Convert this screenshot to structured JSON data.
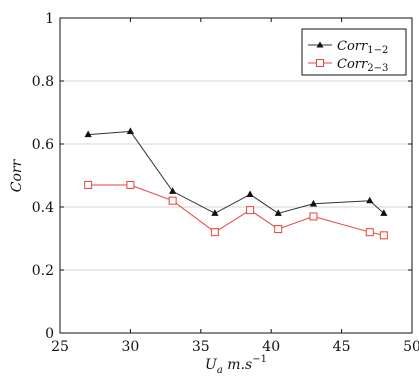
{
  "chart_data": {
    "type": "line",
    "title": "",
    "xlabel": {
      "base": "U",
      "sub": "a",
      "unit": " m.s",
      "sup": "−1"
    },
    "ylabel": "Corr",
    "xlim": [
      25,
      50
    ],
    "ylim": [
      0,
      1
    ],
    "xticks": [
      25,
      30,
      35,
      40,
      45,
      50
    ],
    "xtick_labels": [
      "25",
      "30",
      "35",
      "40",
      "45",
      "50"
    ],
    "yticks": [
      0,
      0.2,
      0.4,
      0.6,
      0.8,
      1
    ],
    "ytick_labels": [
      "0",
      "0.2",
      "0.4",
      "0.6",
      "0.8",
      "1"
    ],
    "grid": {
      "horizontal": true,
      "vertical": false
    },
    "legend_position": "top-right",
    "series": [
      {
        "name": "Corr",
        "subscript": "1−2",
        "marker": "filled-triangle",
        "color": "#333333",
        "x": [
          27,
          30,
          33,
          36,
          38.5,
          40.5,
          43,
          47,
          48
        ],
        "y": [
          0.63,
          0.64,
          0.45,
          0.38,
          0.44,
          0.38,
          0.41,
          0.42,
          0.38
        ]
      },
      {
        "name": "Corr",
        "subscript": "2−3",
        "marker": "open-square",
        "color": "#e8413c",
        "x": [
          27,
          30,
          33,
          36,
          38.5,
          40.5,
          43,
          47,
          48
        ],
        "y": [
          0.47,
          0.47,
          0.42,
          0.32,
          0.39,
          0.33,
          0.37,
          0.32,
          0.31
        ]
      }
    ]
  }
}
